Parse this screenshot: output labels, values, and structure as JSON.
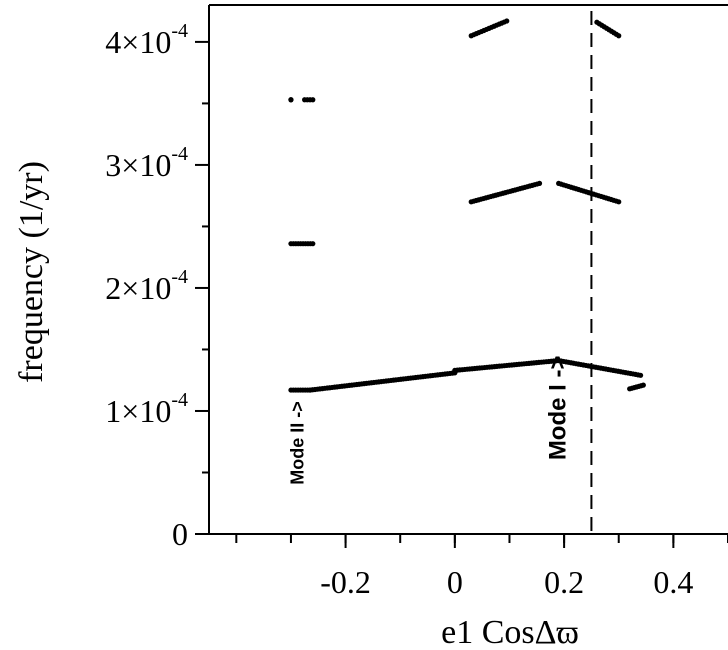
{
  "chart_data": {
    "type": "scatter",
    "xlabel": "e1 CosΔϖ",
    "ylabel": "frequency (1/yr)",
    "xlim": [
      -0.45,
      0.5
    ],
    "ylim": [
      0,
      0.00043
    ],
    "grid": false,
    "x_ticks": [
      {
        "value": -0.2,
        "label": "-0.2"
      },
      {
        "value": 0,
        "label": "0"
      },
      {
        "value": 0.2,
        "label": "0.2"
      },
      {
        "value": 0.4,
        "label": "0.4"
      }
    ],
    "y_ticks": [
      {
        "value": 0,
        "label": "0",
        "exp": ""
      },
      {
        "value": 0.0001,
        "label": "1×10",
        "exp": "-4"
      },
      {
        "value": 0.0002,
        "label": "2×10",
        "exp": "-4"
      },
      {
        "value": 0.0003,
        "label": "3×10",
        "exp": "-4"
      },
      {
        "value": 0.0004,
        "label": "4×10",
        "exp": "-4"
      }
    ],
    "reference_line": {
      "x": 0.25,
      "style": "dashed"
    },
    "annotations": [
      {
        "text": "Mode II ->",
        "x": -0.29,
        "y": 4e-05
      },
      {
        "text": "Mode I ->",
        "x": 0.19,
        "y": 6e-05
      }
    ],
    "series": [
      {
        "segments": [
          {
            "x0": -0.3,
            "x1": -0.265,
            "y0": 0.000117,
            "y1": 0.000117
          },
          {
            "x0": -0.265,
            "x1": 0.0,
            "y0": 0.000117,
            "y1": 0.000131
          },
          {
            "x0": 0.0,
            "x1": 0.19,
            "y0": 0.000133,
            "y1": 0.000141
          },
          {
            "x0": 0.19,
            "x1": 0.34,
            "y0": 0.000141,
            "y1": 0.000129
          },
          {
            "x0": 0.32,
            "x1": 0.345,
            "y0": 0.000118,
            "y1": 0.000121
          }
        ]
      },
      {
        "segments": [
          {
            "x0": -0.3,
            "x1": -0.26,
            "y0": 0.000236,
            "y1": 0.000236
          },
          {
            "x0": 0.03,
            "x1": 0.155,
            "y0": 0.00027,
            "y1": 0.000285
          },
          {
            "x0": 0.19,
            "x1": 0.3,
            "y0": 0.000285,
            "y1": 0.00027
          }
        ]
      },
      {
        "segments": [
          {
            "x0": -0.3,
            "x1": -0.3,
            "y0": 0.000353,
            "y1": 0.000353
          },
          {
            "x0": -0.275,
            "x1": -0.26,
            "y0": 0.000353,
            "y1": 0.000353
          },
          {
            "x0": 0.03,
            "x1": 0.095,
            "y0": 0.000405,
            "y1": 0.000417
          },
          {
            "x0": 0.26,
            "x1": 0.3,
            "y0": 0.000416,
            "y1": 0.000405
          }
        ]
      }
    ]
  }
}
